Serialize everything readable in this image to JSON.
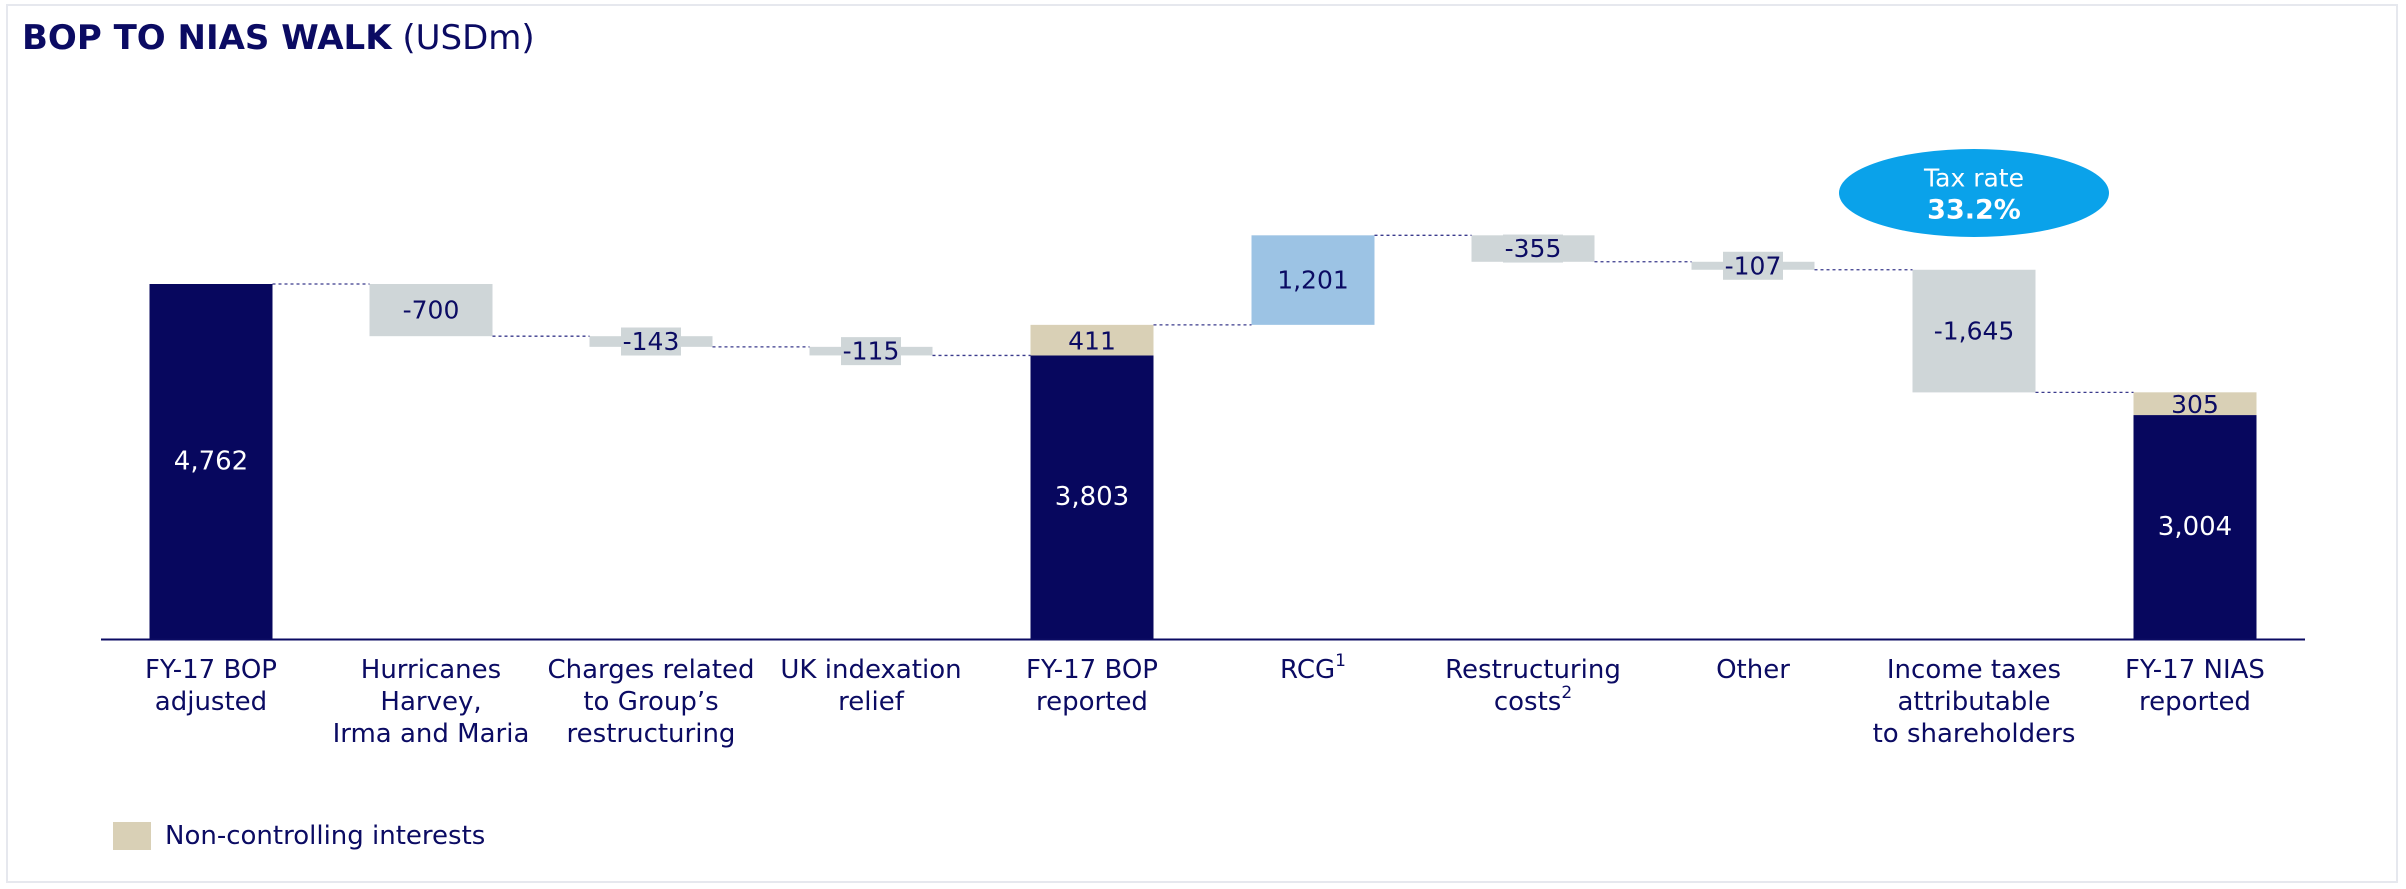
{
  "title": {
    "main": "BOP TO NIAS WALK",
    "unit": "(USDm)"
  },
  "badge": {
    "line1": "Tax rate",
    "line2": "33.2%"
  },
  "legend": {
    "label": "Non-controlling interests"
  },
  "colors": {
    "total": "#07075e",
    "decrease": "#cfd6d8",
    "increase": "#9cc3e4",
    "nci": "#d9d0b6",
    "badge": "#0aa2ea",
    "axis": "#0b0b63",
    "connector": "#3a3a8c"
  },
  "chart_data": {
    "type": "waterfall",
    "title": "BOP TO NIAS WALK (USDm)",
    "ylim": [
      0,
      4762
    ],
    "grid": false,
    "legend": "bottom-left",
    "categories": [
      [
        "FY-17 BOP",
        "adjusted"
      ],
      [
        "Hurricanes",
        "Harvey,",
        "Irma and Maria"
      ],
      [
        "Charges related",
        "to Group's",
        "restructuring"
      ],
      [
        "UK indexation",
        "relief"
      ],
      [
        "FY-17 BOP",
        "reported"
      ],
      [
        "RCG",
        "1"
      ],
      [
        "Restructuring",
        "costs",
        "2"
      ],
      [
        "Other"
      ],
      [
        "Income taxes",
        "attributable",
        "to shareholders"
      ],
      [
        "FY-17 NIAS",
        "reported"
      ]
    ],
    "bars": [
      {
        "kind": "total",
        "value": 4762,
        "label": "4,762"
      },
      {
        "kind": "delta",
        "value": -700,
        "label": "-700"
      },
      {
        "kind": "delta",
        "value": -143,
        "label": "-143"
      },
      {
        "kind": "delta",
        "value": -115,
        "label": "-115"
      },
      {
        "kind": "total",
        "value": 3803,
        "label": "3,803",
        "nci": 411,
        "nci_label": "411"
      },
      {
        "kind": "delta",
        "value": 1201,
        "label": "1,201"
      },
      {
        "kind": "delta",
        "value": -355,
        "label": "-355"
      },
      {
        "kind": "delta",
        "value": -107,
        "label": "-107"
      },
      {
        "kind": "delta",
        "value": -1645,
        "label": "-1,645"
      },
      {
        "kind": "total",
        "value": 3004,
        "label": "3,004",
        "nci": 305,
        "nci_label": "305"
      }
    ]
  }
}
